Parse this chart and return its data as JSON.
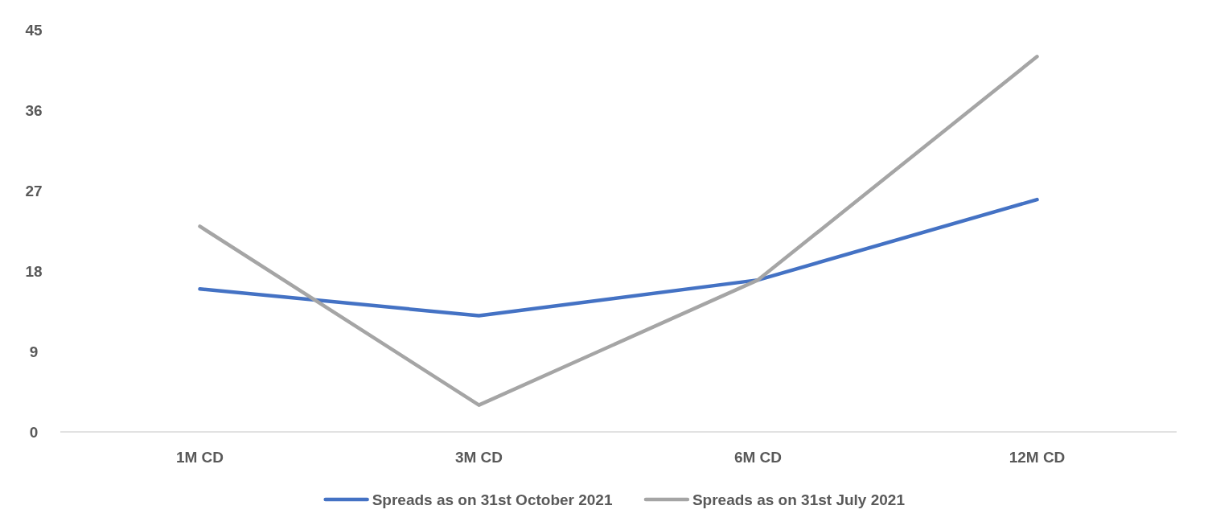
{
  "chart_data": {
    "type": "line",
    "categories": [
      "1M CD",
      "3M CD",
      "6M CD",
      "12M CD"
    ],
    "series": [
      {
        "name": "Spreads as on 31st October 2021",
        "color": "#4472c4",
        "values": [
          16,
          13,
          17,
          26
        ]
      },
      {
        "name": "Spreads as on 31st July 2021",
        "color": "#a5a5a5",
        "values": [
          23,
          3,
          17,
          42
        ]
      }
    ],
    "ylim": [
      0,
      45
    ],
    "yticks": [
      0,
      9,
      18,
      27,
      36,
      45
    ],
    "grid": false,
    "legend": "bottom",
    "marker": "none",
    "line_style": "solid"
  }
}
